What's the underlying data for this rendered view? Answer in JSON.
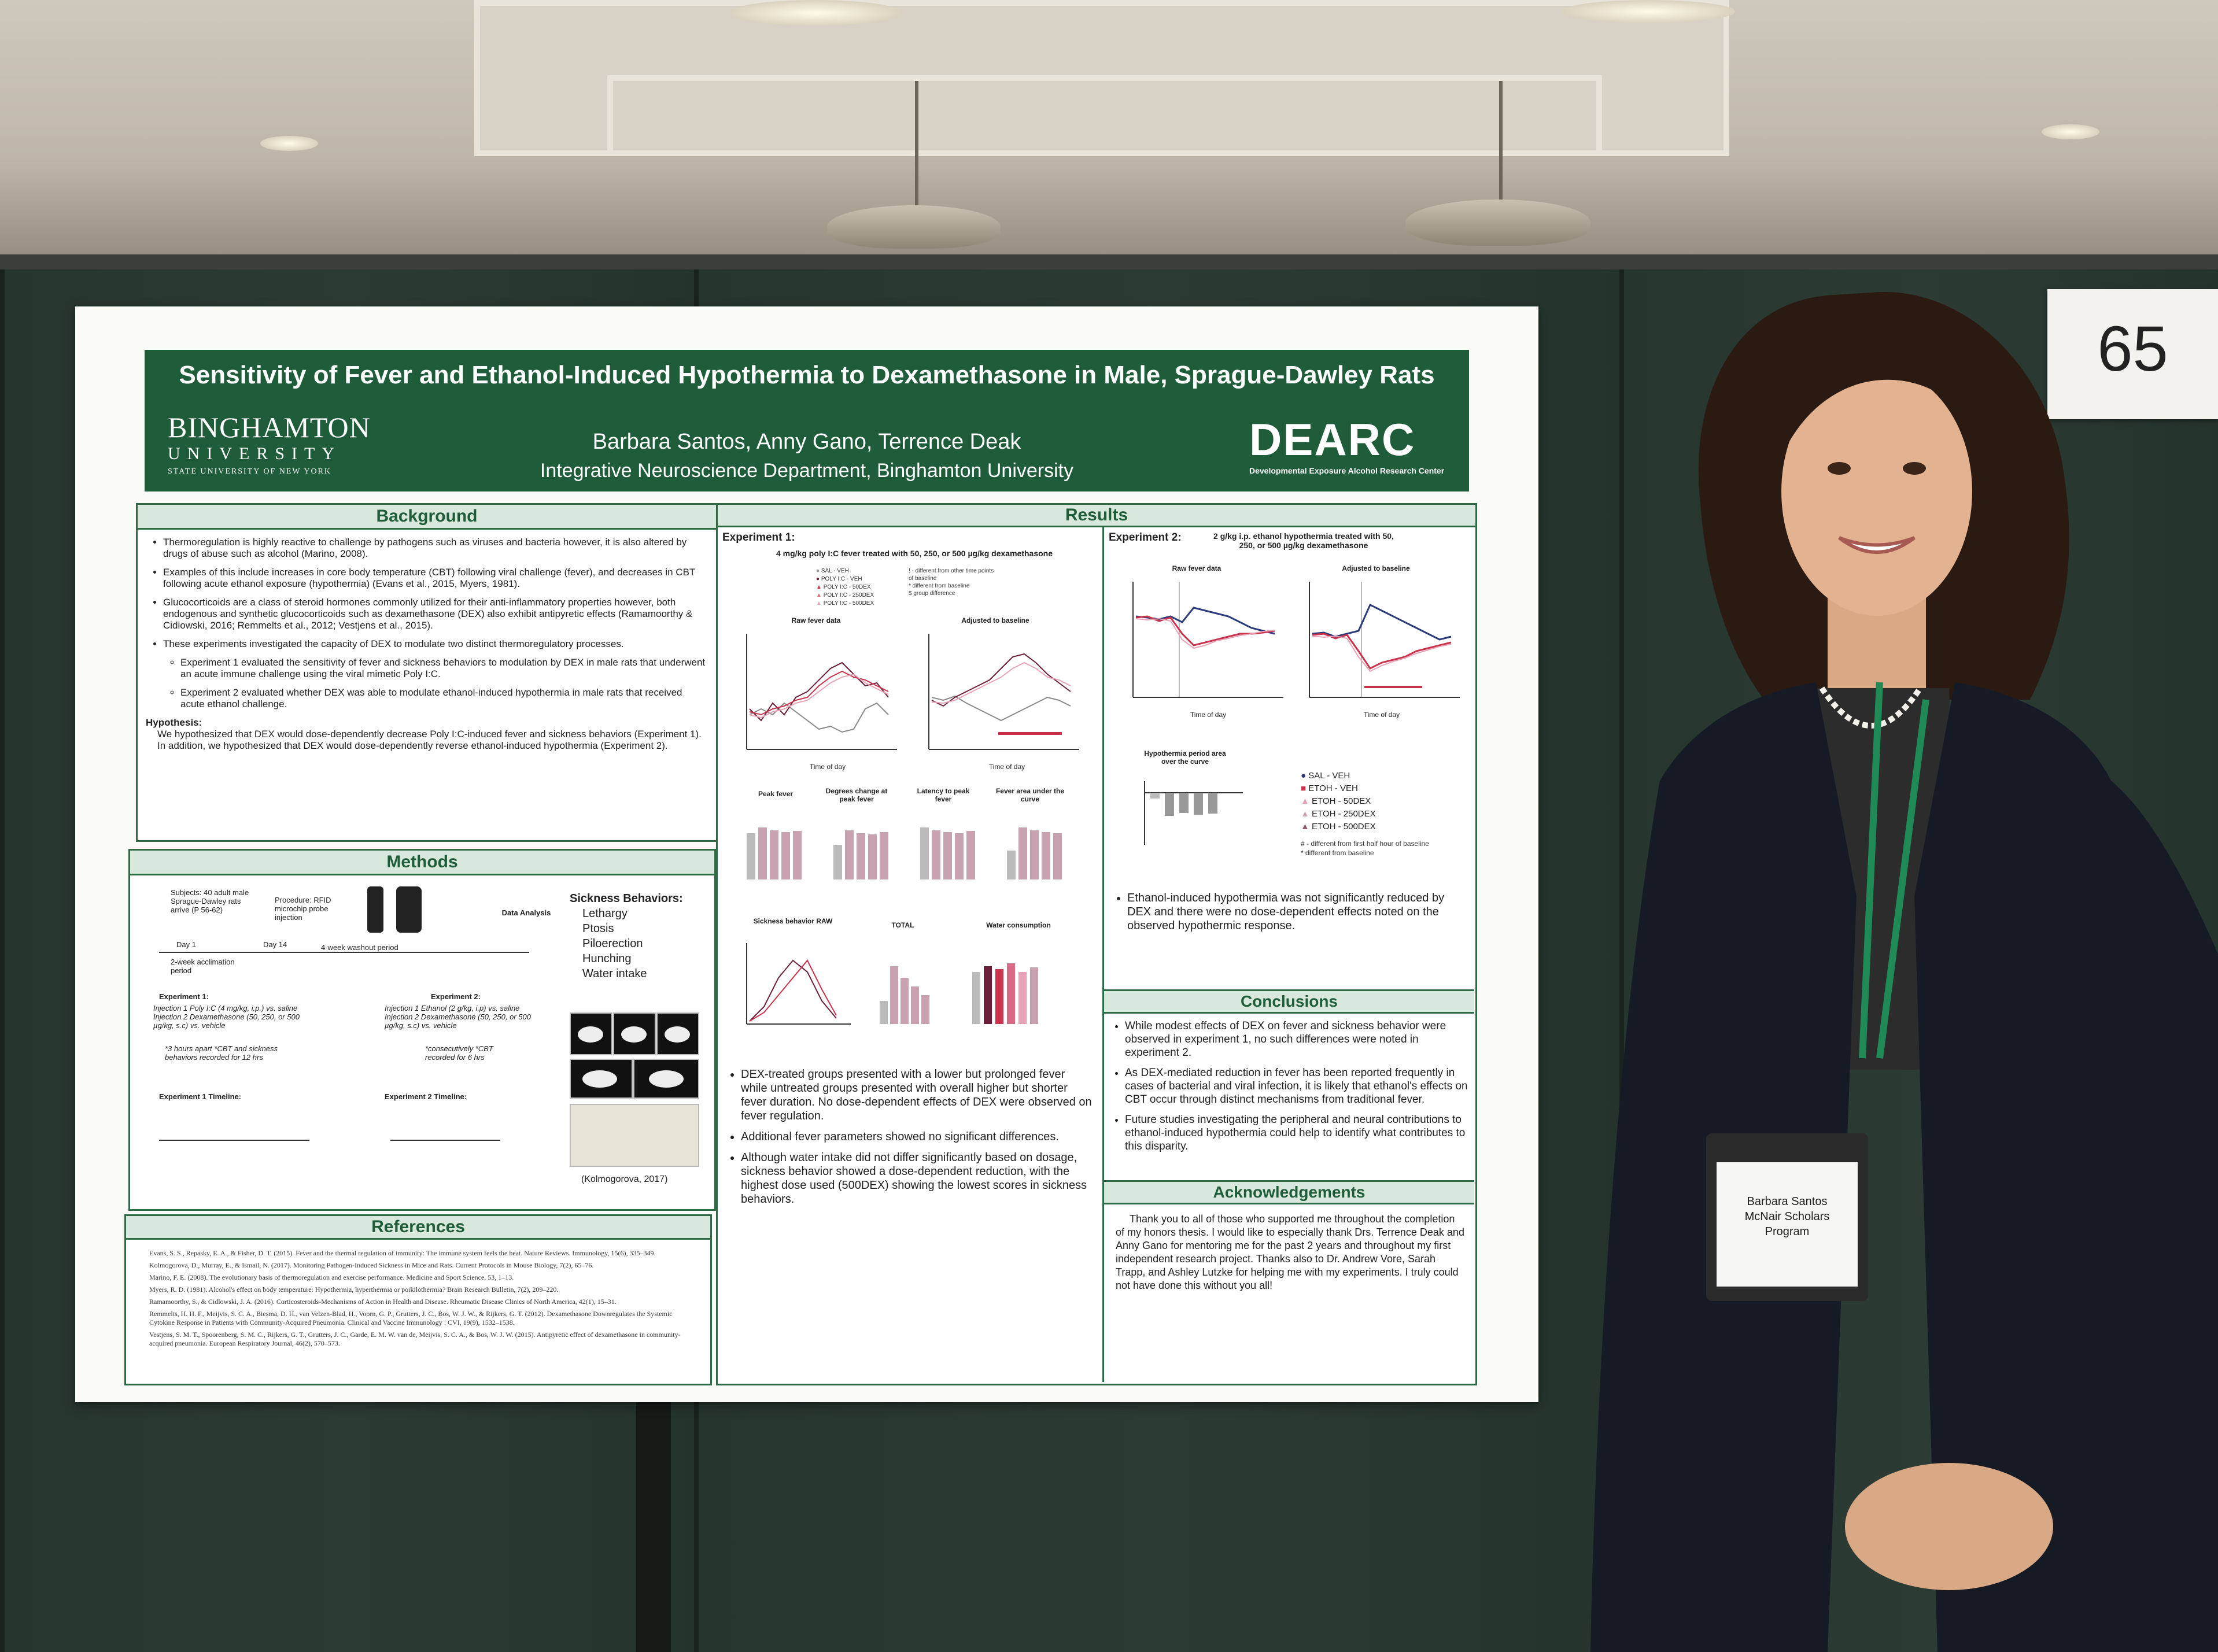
{
  "poster": {
    "title": "Sensitivity of Fever and Ethanol-Induced Hypothermia to Dexamethasone in Male, Sprague-Dawley Rats",
    "authors": "Barbara Santos, Anny Gano, Terrence Deak",
    "department": "Integrative Neuroscience Department, Binghamton University",
    "logo_left": {
      "line1": "BINGHAMTON",
      "line2": "UNIVERSITY",
      "line3": "STATE UNIVERSITY OF NEW YORK"
    },
    "logo_right": {
      "name": "DEARC",
      "subtitle": "Developmental Exposure Alcohol Research Center"
    },
    "background": {
      "heading": "Background",
      "bullets": [
        "Thermoregulation is highly reactive to challenge by pathogens such as viruses and bacteria however, it is also altered by drugs of abuse such as alcohol (Marino, 2008).",
        "Examples of this include increases in core body temperature (CBT) following viral challenge (fever), and decreases in CBT following acute ethanol exposure (hypothermia) (Evans et al., 2015, Myers, 1981).",
        "Glucocorticoids are a class of steroid hormones commonly utilized for their anti-inflammatory properties however, both endogenous and synthetic glucocorticoids such as dexamethasone (DEX) also exhibit antipyretic effects (Ramamoorthy & Cidlowski, 2016; Remmelts et al., 2012; Vestjens et al., 2015).",
        "These experiments investigated the capacity of DEX to modulate two distinct thermoregulatory processes."
      ],
      "sub_bullets": [
        "Experiment 1 evaluated the sensitivity of fever and sickness behaviors to modulation by DEX in male rats that underwent an acute immune challenge using the viral mimetic Poly I:C.",
        "Experiment 2 evaluated whether DEX was able to modulate ethanol-induced hypothermia in male rats that received acute ethanol challenge."
      ],
      "hypothesis_label": "Hypothesis:",
      "hypothesis": "We hypothesized that DEX would dose-dependently decrease Poly I:C-induced fever and sickness behaviors (Experiment 1). In addition, we hypothesized that DEX would dose-dependently reverse ethanol-induced hypothermia (Experiment 2)."
    },
    "methods": {
      "heading": "Methods",
      "subjects": "Subjects: 40 adult male Sprague-Dawley rats arrive (P 56-62)",
      "procedure": "Procedure: RFID microchip probe injection",
      "data_analysis": "Data Analysis",
      "day1": "Day 1",
      "day14": "Day 14",
      "acclimation": "2-week acclimation period",
      "washout": "4-week washout period",
      "exp1_label": "Experiment 1:",
      "exp1_text": "Injection 1 Poly I:C (4 mg/kg, i.p.) vs. saline Injection 2 Dexamethasone (50, 250, or 500 µg/kg, s.c) vs. vehicle",
      "exp1_note": "*3 hours apart *CBT and sickness behaviors recorded for 12 hrs",
      "exp2_label": "Experiment 2:",
      "exp2_text": "Injection 1 Ethanol (2 g/kg, i.p) vs. saline Injection 2 Dexamethasone (50, 250, or 500 µg/kg, s.c) vs. vehicle",
      "exp2_note": "*consecutively *CBT recorded for 6 hrs",
      "timeline1_label": "Experiment 1 Timeline:",
      "timeline2_label": "Experiment 2 Timeline:",
      "sickness_heading": "Sickness Behaviors:",
      "sickness_items": [
        "Lethargy",
        "Ptosis",
        "Piloerection",
        "Hunching",
        "Water intake"
      ],
      "photo_credit": "(Kolmogorova, 2017)"
    },
    "references": {
      "heading": "References",
      "items": [
        "Evans, S. S., Repasky, E. A., & Fisher, D. T. (2015). Fever and the thermal regulation of immunity: The immune system feels the heat. Nature Reviews. Immunology, 15(6), 335–349.",
        "Kolmogorova, D., Murray, E., & Ismail, N. (2017). Monitoring Pathogen-Induced Sickness in Mice and Rats. Current Protocols in Mouse Biology, 7(2), 65–76.",
        "Marino, F. E. (2008). The evolutionary basis of thermoregulation and exercise performance. Medicine and Sport Science, 53, 1–13.",
        "Myers, R. D. (1981). Alcohol's effect on body temperature: Hypothermia, hyperthermia or poikilothermia? Brain Research Bulletin, 7(2), 209–220.",
        "Ramamoorthy, S., & Cidlowski, J. A. (2016). Corticosteroids-Mechanisms of Action in Health and Disease. Rheumatic Disease Clinics of North America, 42(1), 15–31.",
        "Remmelts, H. H. F., Meijvis, S. C. A., Biesma, D. H., van Velzen-Blad, H., Voorn, G. P., Grutters, J. C., Bos, W. J. W., & Rijkers, G. T. (2012). Dexamethasone Downregulates the Systemic Cytokine Response in Patients with Community-Acquired Pneumonia. Clinical and Vaccine Immunology : CVI, 19(9), 1532–1538.",
        "Vestjens, S. M. T., Spoorenberg, S. M. C., Rijkers, G. T., Grutters, J. C., Garde, E. M. W. van de, Meijvis, S. C. A., & Bos, W. J. W. (2015). Antipyretic effect of dexamethasone in community-acquired pneumonia. European Respiratory Journal, 46(2), 570–573."
      ]
    },
    "results": {
      "heading": "Results",
      "exp1_label": "Experiment 1:",
      "exp1_sub": "4 mg/kg poly I:C fever treated with 50, 250, or 500 µg/kg dexamethasone",
      "exp1_legend": [
        "SAL - VEH",
        "POLY I:C - VEH",
        "POLY I:C - 50DEX",
        "POLY I:C - 250DEX",
        "POLY I:C - 500DEX"
      ],
      "exp1_legend_notes": [
        "! - different from other time points of baseline",
        "* different from baseline",
        "$ group difference"
      ],
      "raw_fever": "Raw fever data",
      "adjusted": "Adjusted to baseline",
      "time_of_day": "Time of day",
      "peak_fever": "Peak fever",
      "degrees_change": "Degrees change at peak fever",
      "latency": "Latency to peak fever",
      "fever_area": "Fever area under the curve",
      "sickness_raw": "Sickness behavior RAW",
      "total": "TOTAL",
      "water": "Water consumption",
      "exp1_bullets": [
        "DEX-treated groups presented with a lower but prolonged fever while untreated groups presented with overall higher but shorter fever duration. No dose-dependent effects of DEX were observed on fever regulation.",
        "Additional fever parameters showed no significant differences.",
        "Although water intake did not differ significantly based on dosage, sickness behavior showed a dose-dependent reduction, with the highest dose used (500DEX) showing the lowest scores in sickness behaviors."
      ],
      "exp2_label": "Experiment 2:",
      "exp2_sub": "2 g/kg i.p. ethanol hypothermia treated with 50, 250, or 500 µg/kg dexamethasone",
      "hypo_area": "Hypothermia period area over the curve",
      "exp2_legend": [
        "SAL - VEH",
        "ETOH - VEH",
        "ETOH - 50DEX",
        "ETOH - 250DEX",
        "ETOH - 500DEX"
      ],
      "exp2_legend_notes": [
        "# - different from first half hour of baseline",
        "* different from baseline"
      ],
      "exp2_bullets": [
        "Ethanol-induced hypothermia was not significantly reduced by DEX and there were no dose-dependent effects noted on the observed hypothermic response."
      ]
    },
    "conclusions": {
      "heading": "Conclusions",
      "bullets": [
        "While modest effects of DEX on fever and sickness behavior were observed in experiment 1, no such differences were noted in experiment 2.",
        "As DEX-mediated reduction in fever has been reported frequently in cases of bacterial and viral infection, it is likely that ethanol's effects on CBT occur through distinct mechanisms from traditional fever.",
        "Future studies investigating the peripheral and neural contributions to ethanol-induced hypothermia could help to identify what contributes to this disparity."
      ]
    },
    "acknowledgements": {
      "heading": "Acknowledgements",
      "text": "Thank you to all of those who supported me throughout the completion of my honors thesis. I would like to especially thank Drs. Terrence Deak and Anny Gano for mentoring me for the past 2 years and throughout my first independent research project. Thanks also to Dr. Andrew Vore, Sarah Trapp, and Ashley Lutzke for helping me with my experiments. I truly could not have done this without you all!"
    }
  },
  "colors": {
    "banner": "#1f5d3a",
    "accent_red": "#c8324a",
    "accent_navy": "#2b3a7a",
    "pink": "#e7a3b5"
  },
  "sign": {
    "number": "65"
  },
  "badge": {
    "line1": "Barbara Santos",
    "line2": "McNair Scholars",
    "line3": "Program"
  }
}
